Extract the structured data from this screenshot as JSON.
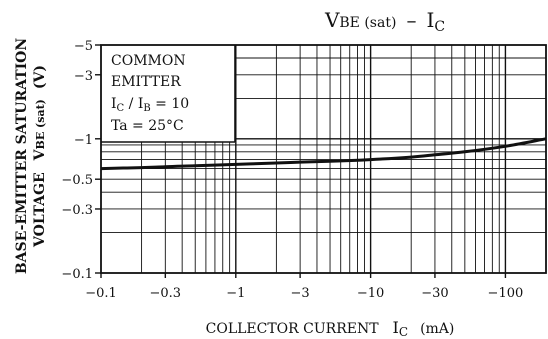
{
  "chart_data": {
    "type": "line",
    "title": {
      "main": "V",
      "main_sub": "BE (sat)",
      "dash": "–",
      "tail": "I",
      "tail_sub": "C"
    },
    "xlabel": {
      "main": "COLLECTOR CURRENT",
      "sym": "I",
      "sym_sub": "C",
      "unit": "(mA)"
    },
    "ylabel": {
      "line1": "BASE-EMITTER SATURATION",
      "line2_pre": "VOLTAGE",
      "line2_sym": "V",
      "line2_sub": "BE (sat)",
      "line2_unit": "(V)"
    },
    "x_scale": "log",
    "y_scale": "log",
    "xlim": [
      -0.1,
      -200
    ],
    "ylim": [
      -0.1,
      -5
    ],
    "x_ticks": [
      {
        "value": -0.1,
        "label": "−0.1"
      },
      {
        "value": -0.3,
        "label": "−0.3"
      },
      {
        "value": -1,
        "label": "−1"
      },
      {
        "value": -3,
        "label": "−3"
      },
      {
        "value": -10,
        "label": "−10"
      },
      {
        "value": -30,
        "label": "−30"
      },
      {
        "value": -100,
        "label": "−100"
      }
    ],
    "y_ticks": [
      {
        "value": -5,
        "label": "−5"
      },
      {
        "value": -3,
        "label": "−3"
      },
      {
        "value": -1,
        "label": "−1"
      },
      {
        "value": -0.5,
        "label": "−0.5"
      },
      {
        "value": -0.3,
        "label": "−0.3"
      },
      {
        "value": -0.1,
        "label": "−0.1"
      }
    ],
    "grid": true,
    "legend": {
      "line1": "COMMON",
      "line2": "EMITTER",
      "line3": {
        "a": "I",
        "a_sub": "C",
        "sep": " / ",
        "b": "I",
        "b_sub": "B",
        "eq": " = 10"
      },
      "line4": "Ta = 25°C",
      "placement": "top-left"
    },
    "series": [
      {
        "x": [
          -0.1,
          -0.2,
          -0.3,
          -0.5,
          -1,
          -2,
          -3,
          -5,
          -10,
          -20,
          -30,
          -50,
          -100,
          -200
        ],
        "y": [
          -0.6,
          -0.61,
          -0.62,
          -0.63,
          -0.645,
          -0.66,
          -0.67,
          -0.68,
          -0.7,
          -0.73,
          -0.76,
          -0.8,
          -0.88,
          -1.0
        ]
      }
    ]
  }
}
